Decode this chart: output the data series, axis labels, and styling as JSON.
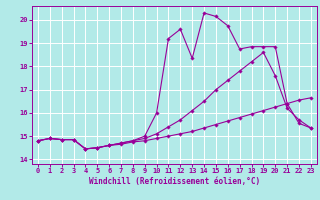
{
  "xlabel": "Windchill (Refroidissement éolien,°C)",
  "bg_color": "#b2eae8",
  "line_color": "#990099",
  "grid_color": "#ffffff",
  "xlim": [
    -0.5,
    23.5
  ],
  "ylim": [
    13.8,
    20.6
  ],
  "yticks": [
    14,
    15,
    16,
    17,
    18,
    19,
    20
  ],
  "xticks": [
    0,
    1,
    2,
    3,
    4,
    5,
    6,
    7,
    8,
    9,
    10,
    11,
    12,
    13,
    14,
    15,
    16,
    17,
    18,
    19,
    20,
    21,
    22,
    23
  ],
  "series1_x": [
    0,
    1,
    2,
    3,
    4,
    5,
    6,
    7,
    8,
    9,
    10,
    11,
    12,
    13,
    14,
    15,
    16,
    17,
    18,
    19,
    20,
    21,
    22,
    23
  ],
  "series1_y": [
    14.8,
    14.9,
    14.85,
    14.85,
    14.45,
    14.5,
    14.6,
    14.65,
    14.75,
    14.8,
    14.9,
    15.0,
    15.1,
    15.2,
    15.35,
    15.5,
    15.65,
    15.8,
    15.95,
    16.1,
    16.25,
    16.4,
    16.55,
    16.65
  ],
  "series2_x": [
    0,
    1,
    2,
    3,
    4,
    5,
    6,
    7,
    8,
    9,
    10,
    11,
    12,
    13,
    14,
    15,
    16,
    17,
    18,
    19,
    20,
    21,
    22,
    23
  ],
  "series2_y": [
    14.8,
    14.9,
    14.85,
    14.85,
    14.45,
    14.5,
    14.6,
    14.7,
    14.8,
    14.9,
    15.1,
    15.4,
    15.7,
    16.1,
    16.5,
    17.0,
    17.4,
    17.8,
    18.2,
    18.6,
    17.6,
    16.2,
    15.7,
    15.35
  ],
  "series3_x": [
    0,
    1,
    2,
    3,
    4,
    5,
    6,
    7,
    8,
    9,
    10,
    11,
    12,
    13,
    14,
    15,
    16,
    17,
    18,
    19,
    20,
    21,
    22,
    23
  ],
  "series3_y": [
    14.8,
    14.9,
    14.85,
    14.85,
    14.45,
    14.5,
    14.6,
    14.7,
    14.8,
    15.0,
    16.0,
    19.2,
    19.6,
    18.35,
    20.3,
    20.15,
    19.75,
    18.75,
    18.85,
    18.85,
    18.85,
    16.4,
    15.55,
    15.35
  ],
  "marker": "D",
  "markersize": 1.8,
  "linewidth": 0.8,
  "tick_fontsize": 5.0,
  "xlabel_fontsize": 5.5
}
